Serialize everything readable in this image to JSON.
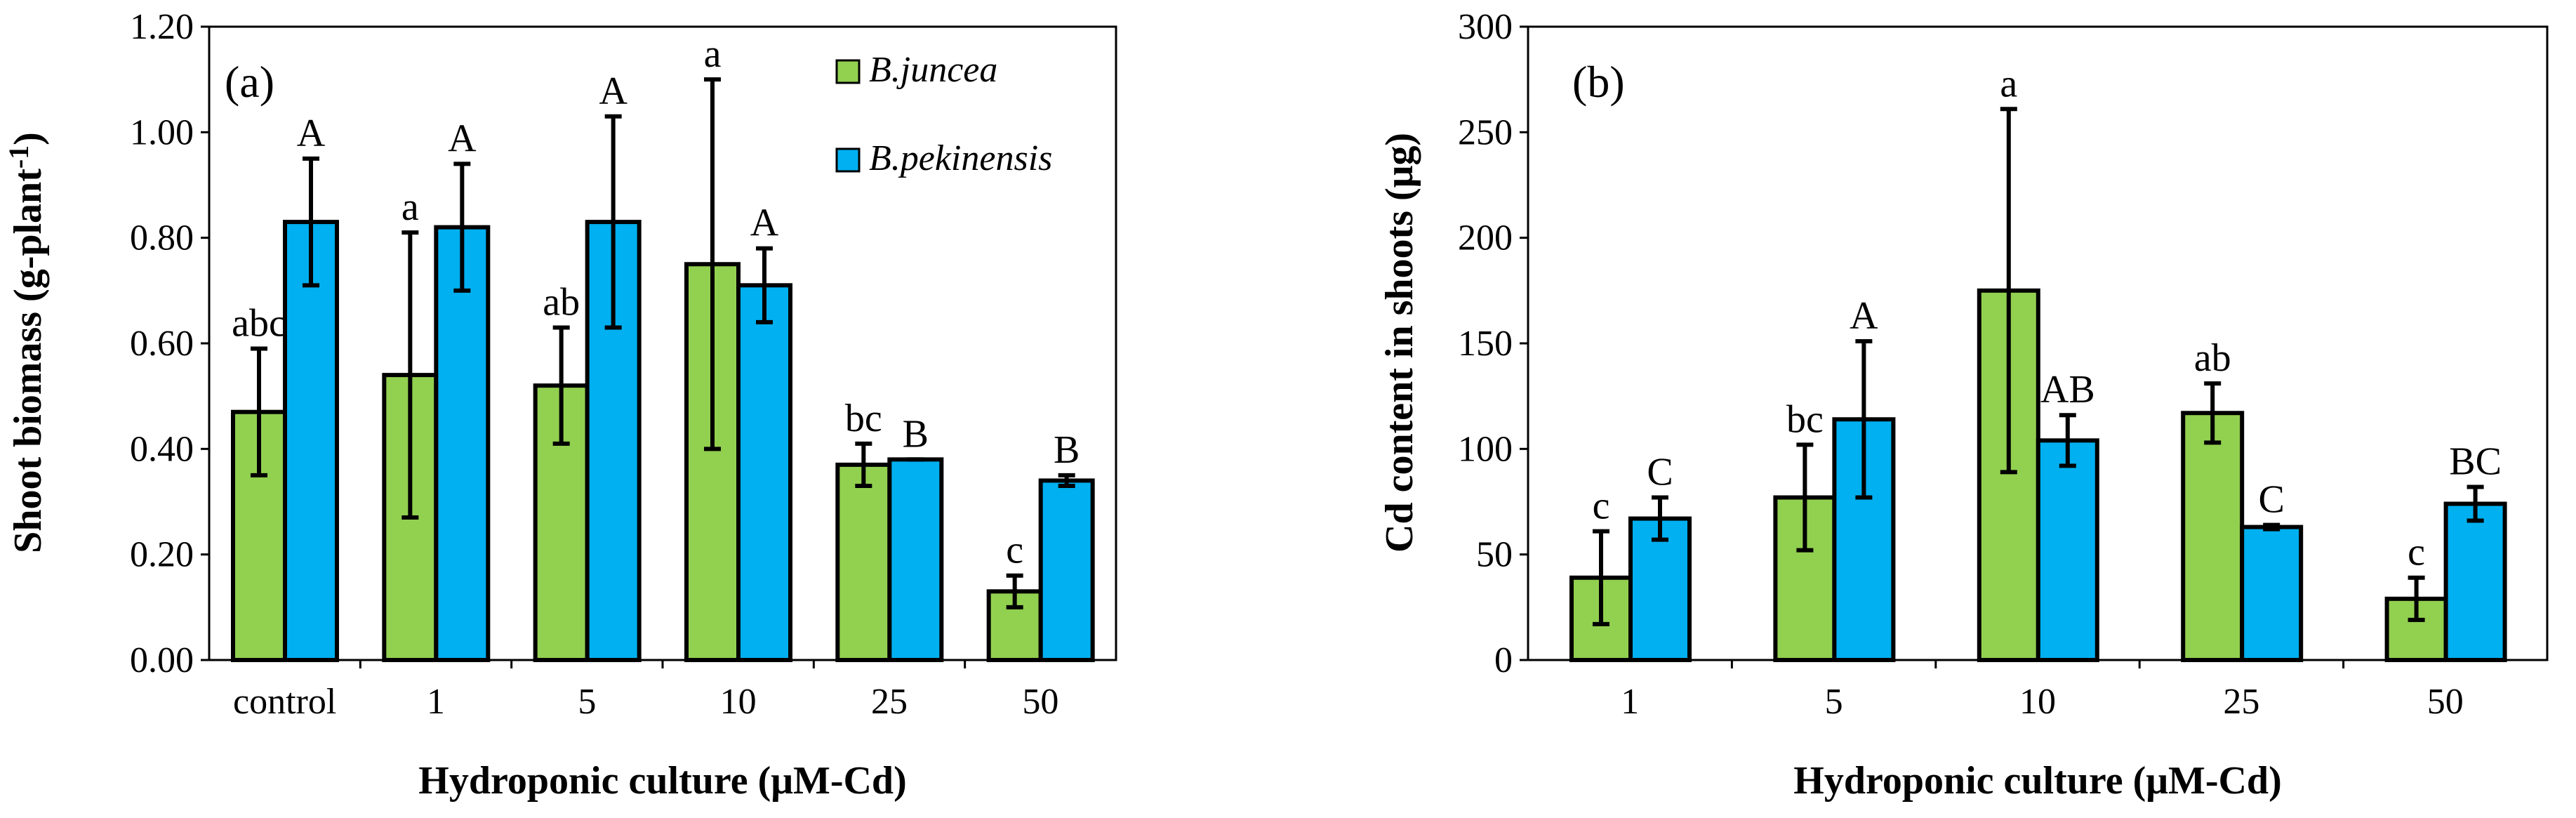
{
  "chart_data": [
    {
      "panel": "(a)",
      "type": "bar",
      "xlabel": "Hydroponic culture (μM-Cd)",
      "ylabel_main": "Shoot biomass (g-plant",
      "ylabel_sup": "-1",
      "ylabel_end": ")",
      "ylim": [
        0,
        1.2
      ],
      "yticks": [
        "0.00",
        "0.20",
        "0.40",
        "0.60",
        "0.80",
        "1.00",
        "1.20"
      ],
      "categories": [
        "control",
        "1",
        "5",
        "10",
        "25",
        "50"
      ],
      "series": [
        {
          "name": "B.juncea",
          "color": "#92d050",
          "values": [
            0.47,
            0.54,
            0.52,
            0.75,
            0.37,
            0.13
          ],
          "errors": [
            0.12,
            0.27,
            0.11,
            0.35,
            0.04,
            0.03
          ],
          "letters": [
            "abc",
            "a",
            "ab",
            "a",
            "bc",
            "c"
          ]
        },
        {
          "name": "B.pekinensis",
          "color": "#00b0f0",
          "values": [
            0.83,
            0.82,
            0.83,
            0.71,
            0.38,
            0.34
          ],
          "errors": [
            0.12,
            0.12,
            0.2,
            0.07,
            0.0,
            0.01
          ],
          "letters": [
            "A",
            "A",
            "A",
            "A",
            "B",
            "B"
          ]
        }
      ]
    },
    {
      "panel": "(b)",
      "type": "bar",
      "xlabel": "Hydroponic culture (μM-Cd)",
      "ylabel": "Cd content in shoots (μg)",
      "ylim": [
        0,
        300
      ],
      "yticks": [
        "0",
        "50",
        "100",
        "150",
        "200",
        "250",
        "300"
      ],
      "categories": [
        "1",
        "5",
        "10",
        "25",
        "50"
      ],
      "series": [
        {
          "name": "B.juncea",
          "color": "#92d050",
          "values": [
            39,
            77,
            175,
            117,
            29
          ],
          "errors": [
            22,
            25,
            86,
            14,
            10
          ],
          "letters": [
            "c",
            "bc",
            "a",
            "ab",
            "c"
          ]
        },
        {
          "name": "B.pekinensis",
          "color": "#00b0f0",
          "values": [
            67,
            114,
            104,
            63,
            74
          ],
          "errors": [
            10,
            37,
            12,
            1,
            8
          ],
          "letters": [
            "C",
            "A",
            "AB",
            "C",
            "BC"
          ]
        }
      ]
    }
  ]
}
